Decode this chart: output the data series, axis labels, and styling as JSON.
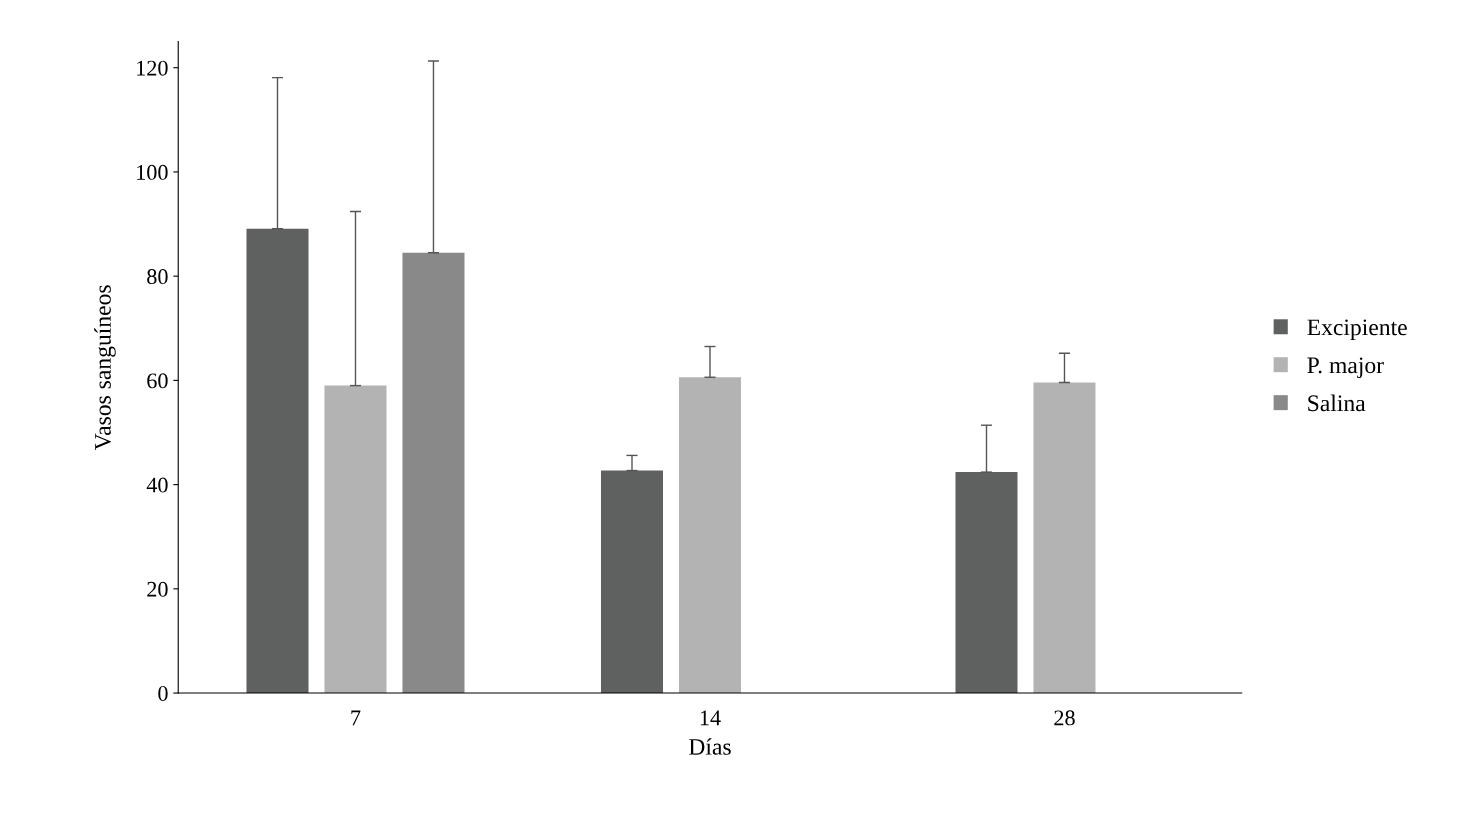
{
  "chart_data": {
    "type": "bar",
    "xlabel": "Días",
    "ylabel": "Vasos sanguíneos",
    "categories": [
      "7",
      "14",
      "28"
    ],
    "series": [
      {
        "name": "Excipiente",
        "color": "#5f6160",
        "values": [
          89.1,
          42.7,
          42.4
        ],
        "errors": [
          [
            89.1,
            118.1
          ],
          [
            42.7,
            45.6
          ],
          [
            42.4,
            51.4
          ]
        ]
      },
      {
        "name": "P. major",
        "color": "#b3b3b3",
        "values": [
          59.0,
          60.6,
          59.6
        ],
        "errors": [
          [
            59.0,
            92.4
          ],
          [
            60.6,
            66.5
          ],
          [
            59.6,
            65.2
          ]
        ]
      },
      {
        "name": "Salina",
        "color": "#898989",
        "values": [
          84.5,
          null,
          null
        ],
        "errors": [
          [
            84.5,
            121.3
          ],
          null,
          null
        ]
      }
    ],
    "ylim": [
      0,
      125
    ],
    "yticks": [
      0,
      20,
      40,
      60,
      80,
      100,
      120
    ],
    "grid": false,
    "legend": "right"
  }
}
